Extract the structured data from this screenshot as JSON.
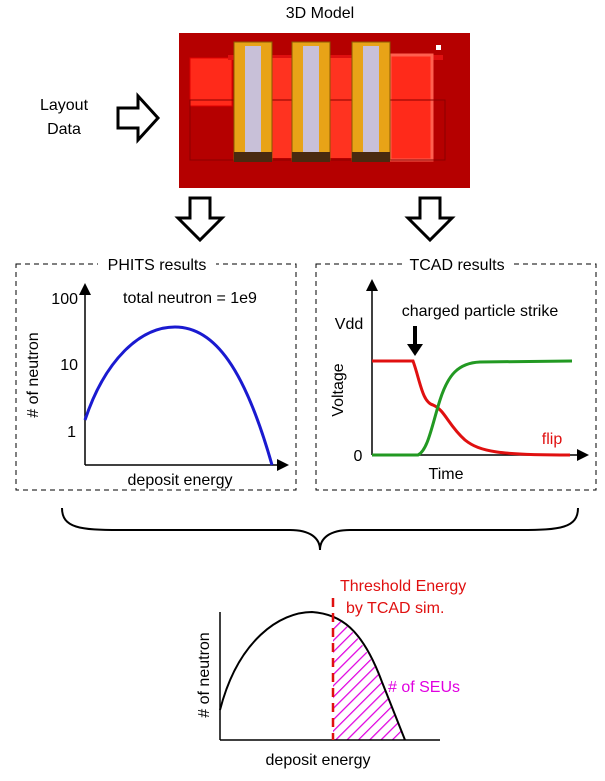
{
  "top": {
    "title": "3D Model",
    "layout_label": [
      "Layout",
      "Data"
    ]
  },
  "phits": {
    "title": "PHITS results",
    "annotation": "total neutron = 1e9",
    "y_labels": [
      "100",
      "10",
      "1"
    ],
    "y_axis": "# of neutron",
    "x_axis": "deposit energy"
  },
  "tcad": {
    "title": "TCAD results",
    "annotation": "charged particle strike",
    "y_labels": [
      "Vdd",
      "0"
    ],
    "y_axis": "Voltage",
    "x_axis": "Time",
    "flip_label": "flip"
  },
  "result": {
    "threshold_label": [
      "Threshold Energy",
      "by TCAD sim."
    ],
    "area_label": "# of SEUs",
    "y_axis": "# of neutron",
    "x_axis": "deposit energy"
  }
}
